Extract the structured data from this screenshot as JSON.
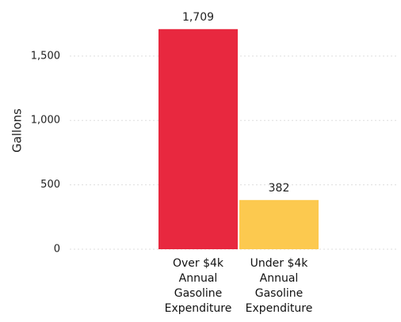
{
  "chart_data": {
    "type": "bar",
    "y_label": "Gallons",
    "categories": [
      "Over $4k Annual Gasoline Expenditure",
      "Under $4k Annual Gasoline Expenditure"
    ],
    "values": [
      1709,
      382
    ],
    "value_labels": [
      "1,709",
      "382"
    ],
    "colors": [
      "#e8283f",
      "#fcc94f"
    ],
    "ylim": [
      0,
      1800
    ],
    "yticks": [
      0,
      500,
      {
        "value": 1000,
        "label": "1,000"
      },
      {
        "value": 1500,
        "label": "1,500"
      }
    ],
    "grid": true
  }
}
